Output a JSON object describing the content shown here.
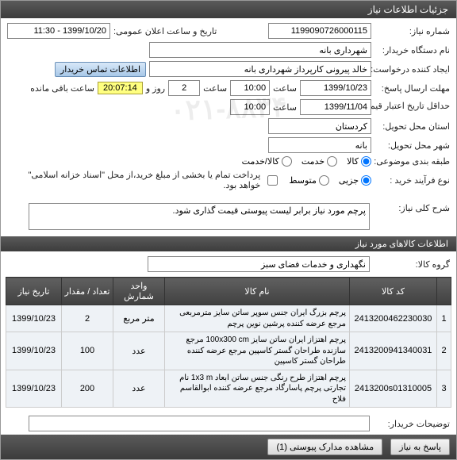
{
  "header": {
    "title": "جزئیات اطلاعات نیاز"
  },
  "form": {
    "need_no_label": "شماره نیاز:",
    "need_no": "1199090726000115",
    "announce_label": "تاریخ و ساعت اعلان عمومی:",
    "announce_value": "1399/10/20 - 11:30",
    "buyer_label": "نام دستگاه خریدار:",
    "buyer_value": "شهرداری بانه",
    "creator_label": "ایجاد کننده درخواست:",
    "creator_value": "خالد پیرونی کارپرداز شهرداری بانه",
    "contact_btn": "اطلاعات تماس خریدار",
    "deadline_send_label": "مهلت ارسال پاسخ:",
    "deadline_send_date": "1399/10/23",
    "time_label": "ساعت",
    "deadline_send_time": "10:00",
    "days_value": "2",
    "days_label": "روز و",
    "timer": "20:07:14",
    "remain_label": "ساعت باقی مانده",
    "validity_label": "حداقل تاریخ اعتبار قیمت: تا تاریخ:",
    "validity_date": "1399/11/04",
    "validity_time": "10:00",
    "province_label": "استان محل تحویل:",
    "province_value": "کردستان",
    "city_label": "شهر محل تحویل:",
    "city_value": "بانه",
    "package_label": "طبقه بندی موضوعی:",
    "pkg_goods": "کالا",
    "pkg_service": "خدمت",
    "pkg_goods_service": "کالا/خدمت",
    "process_label": "نوع فرآیند خرید :",
    "proc_small": "جزیی",
    "proc_medium": "متوسط",
    "partial_pay_label": "پرداخت تمام یا بخشی از مبلغ خرید،از محل \"اسناد خزانه اسلامی\" خواهد بود."
  },
  "desc": {
    "label": "شرح کلی نیاز:",
    "value": "پرچم مورد نیاز برابر لیست پیوستی قیمت گذاری شود."
  },
  "goods_header": "اطلاعات کالاهای مورد نیاز",
  "group": {
    "label": "گروه کالا:",
    "value": "نگهداری و خدمات فضای سبز"
  },
  "table": {
    "cols": {
      "idx": "",
      "code": "کد کالا",
      "name": "نام کالا",
      "unit": "واحد شمارش",
      "qty": "تعداد / مقدار",
      "date": "تاریخ نیاز"
    },
    "rows": [
      {
        "idx": "1",
        "code": "2413200462230030",
        "name": "پرچم بزرگ ایران جنس سوپر ساتن سایز مترمربعی مرجع عرضه کننده پرشین نوین پرچم",
        "unit": "متر مربع",
        "qty": "2",
        "date": "1399/10/23"
      },
      {
        "idx": "2",
        "code": "2413200941340031",
        "name": "پرچم اهتزاز ایران ساتن سایز 100x300 cm مرجع سازنده طراحان گستر کاسپین مرجع عرضه کننده طراحان گستر کاسپین",
        "unit": "عدد",
        "qty": "100",
        "date": "1399/10/23"
      },
      {
        "idx": "3",
        "code": "2413200s01310005",
        "name": "پرچم اهتزاز طرح رنگی جنس ساتن ابعاد 1x3 m نام تجارتی پرچم پاسارگاد مرجع عرضه کننده ابوالقاسم فلاح",
        "unit": "عدد",
        "qty": "200",
        "date": "1399/10/23"
      }
    ]
  },
  "buyer_desc": {
    "label": "توضیحات خریدار:"
  },
  "footer": {
    "reply": "پاسخ به نیاز",
    "attach": "مشاهده مدارک پیوستی (1)"
  },
  "watermark": "۰۲۱-۸۸۳۴",
  "colors": {
    "header_bg": "#474747",
    "row_bg": "#eef2f6",
    "timer_bg": "#ffff80"
  }
}
